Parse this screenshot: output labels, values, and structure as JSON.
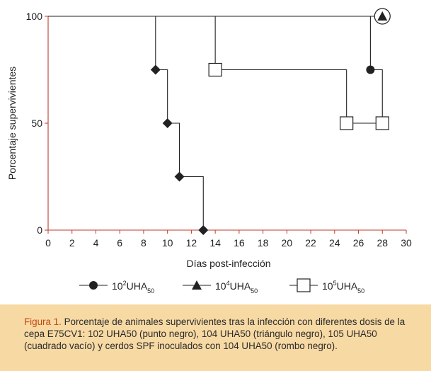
{
  "chart_data": {
    "type": "line",
    "xlabel": "Días post-infección",
    "ylabel": "Porcentaje supervivientes",
    "xlim": [
      0,
      30
    ],
    "ylim": [
      0,
      100
    ],
    "x_ticks": [
      0,
      2,
      4,
      6,
      8,
      10,
      12,
      14,
      16,
      18,
      20,
      22,
      24,
      26,
      28,
      30
    ],
    "y_ticks": [
      0,
      50,
      100
    ],
    "step": true,
    "grid": false,
    "legend_position": "bottom",
    "series": [
      {
        "name": "10²UHA50",
        "legend_main": "10",
        "legend_sup": "2",
        "legend_rest": "UHA",
        "legend_sub": "50",
        "marker": "filled-circle",
        "x": [
          0,
          27,
          28
        ],
        "y": [
          100,
          75,
          50
        ],
        "marked_points": [
          [
            27,
            75
          ],
          [
            28,
            50
          ]
        ]
      },
      {
        "name": "10⁴UHA50",
        "legend_main": "10",
        "legend_sup": "4",
        "legend_rest": "UHA",
        "legend_sub": "50",
        "marker": "filled-triangle",
        "x": [
          0,
          28
        ],
        "y": [
          100,
          100
        ],
        "marked_points": [
          [
            28,
            100
          ]
        ]
      },
      {
        "name": "10⁵UHA50",
        "legend_main": "10",
        "legend_sup": "5",
        "legend_rest": "UHA",
        "legend_sub": "50",
        "marker": "open-square",
        "x": [
          0,
          14,
          25,
          28
        ],
        "y": [
          100,
          75,
          50,
          50
        ],
        "marked_points": [
          [
            14,
            75
          ],
          [
            25,
            50
          ],
          [
            28,
            50
          ]
        ]
      },
      {
        "name": "",
        "marker": "filled-diamond",
        "x": [
          0,
          9,
          10,
          11,
          13
        ],
        "y": [
          100,
          75,
          50,
          25,
          0
        ],
        "marked_points": [
          [
            9,
            75
          ],
          [
            10,
            50
          ],
          [
            11,
            25
          ],
          [
            13,
            0
          ]
        ]
      }
    ],
    "circled_point": [
      28,
      100
    ],
    "axis_color": "#c0392b",
    "line_color": "#222222"
  },
  "caption": {
    "label": "Figura 1.",
    "text": " Porcentaje de animales supervivientes tras la infección con diferentes dosis de la cepa E75CV1: 102 UHA50 (punto negro), 104 UHA50 (triángulo negro), 105 UHA50 (cuadrado vacío) y cerdos SPF inoculados con 104 UHA50 (rombo negro).",
    "background": "#f7d9a4",
    "label_color": "#c14a12"
  }
}
